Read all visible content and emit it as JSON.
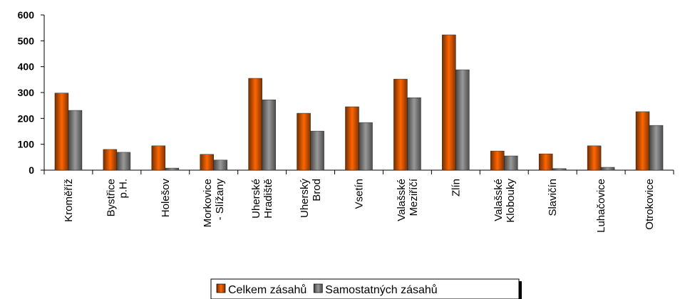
{
  "chart_data": {
    "type": "bar",
    "categories": [
      "Kroměříž",
      "Bystřice\np.H.",
      "Holešov",
      "Morkovice\n- Slížany",
      "Uherské\nHradiště",
      "Uherský\nBrod",
      "Vsetín",
      "Valašské\nMeziříčí",
      "Zlín",
      "Valašské\nKlobouky",
      "Slavičín",
      "Luhačovice",
      "Otrokovice"
    ],
    "series": [
      {
        "name": "Celkem zásahů",
        "color": "#ff6600",
        "values": [
          298,
          80,
          94,
          61,
          355,
          220,
          245,
          352,
          523,
          74,
          63,
          94,
          226
        ]
      },
      {
        "name": "Samostatných zásahů",
        "color": "#999999",
        "values": [
          231,
          69,
          8,
          39,
          272,
          151,
          184,
          280,
          388,
          55,
          6,
          11,
          173
        ]
      }
    ],
    "ylim": [
      0,
      600
    ],
    "yticks": [
      0,
      100,
      200,
      300,
      400,
      500,
      600
    ],
    "grid": false,
    "legend": "bottom"
  }
}
